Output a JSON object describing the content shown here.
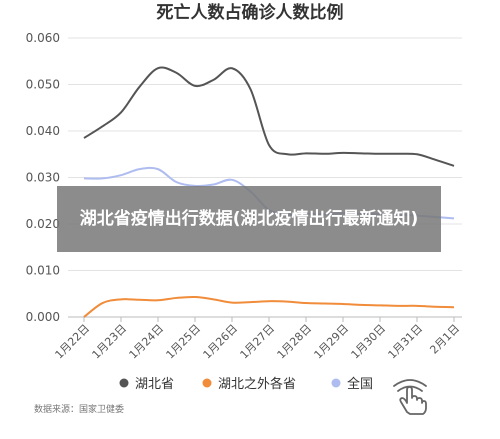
{
  "headline": "湖北省疫情出行数据(湖北疫情出行最新通知)",
  "source_note": "数据来源：国家卫健委",
  "chart_data": {
    "type": "line",
    "title": "死亡人数占确诊人数比例",
    "categories": [
      "1月22日",
      "1月23日",
      "1月24日",
      "1月25日",
      "1月26日",
      "1月27日",
      "1月28日",
      "1月29日",
      "1月30日",
      "1月31日",
      "2月1日"
    ],
    "x": [
      0,
      0.5,
      1,
      1.5,
      2,
      2.5,
      3,
      3.5,
      4,
      4.5,
      5,
      5.5,
      6,
      6.5,
      7,
      7.5,
      8,
      8.5,
      9,
      9.5,
      10
    ],
    "ylim": [
      0,
      0.06
    ],
    "yticks": [
      "0.000",
      "0.010",
      "0.020",
      "0.030",
      "0.040",
      "0.050",
      "0.060"
    ],
    "grid": true,
    "legend_position": "bottom",
    "series": [
      {
        "name": "湖北省",
        "color": "#555555",
        "values": [
          0.0385,
          0.041,
          0.044,
          0.0495,
          0.0535,
          0.0525,
          0.0497,
          0.051,
          0.0535,
          0.049,
          0.037,
          0.035,
          0.0352,
          0.0351,
          0.0353,
          0.0352,
          0.0351,
          0.0351,
          0.035,
          0.0338,
          0.0325
        ]
      },
      {
        "name": "湖北之外各省",
        "color": "#f08c3a",
        "values": [
          0.0,
          0.003,
          0.0038,
          0.0037,
          0.0036,
          0.0041,
          0.0043,
          0.0038,
          0.0031,
          0.0032,
          0.0034,
          0.0033,
          0.003,
          0.0029,
          0.0028,
          0.0026,
          0.0025,
          0.0024,
          0.0024,
          0.0022,
          0.0021
        ]
      },
      {
        "name": "全国",
        "color": "#aebcf0",
        "values": [
          0.0298,
          0.0298,
          0.0305,
          0.0318,
          0.0318,
          0.029,
          0.0282,
          0.0285,
          0.0295,
          0.027,
          0.023,
          0.022,
          0.0222,
          0.0221,
          0.0223,
          0.0222,
          0.0221,
          0.022,
          0.0218,
          0.0215,
          0.0212
        ]
      }
    ]
  }
}
